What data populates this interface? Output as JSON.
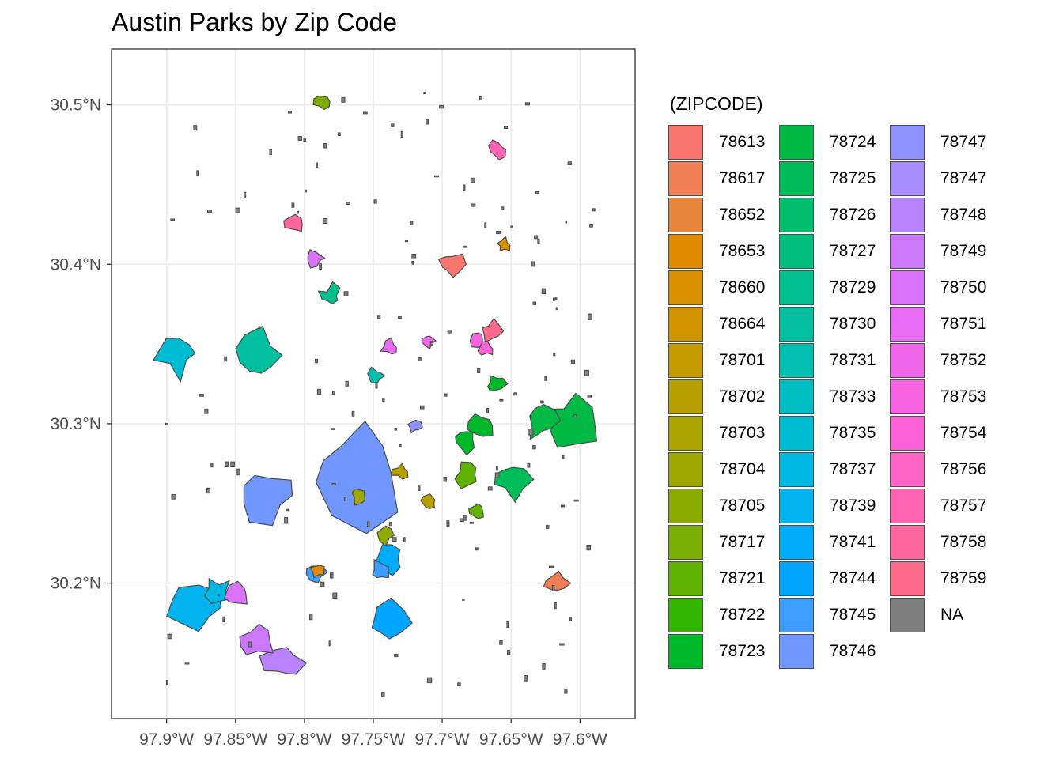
{
  "chart_data": {
    "type": "map",
    "title": "Austin Parks by Zip Code",
    "legend_title": "(ZIPCODE)",
    "legend_position": "right",
    "grid": true,
    "theme": "bw",
    "xlim": [
      -97.94,
      -97.56
    ],
    "ylim": [
      30.115,
      30.535
    ],
    "x_ticks": [
      {
        "value": -97.9,
        "label": "97.9°W"
      },
      {
        "value": -97.85,
        "label": "97.85°W"
      },
      {
        "value": -97.8,
        "label": "97.8°W"
      },
      {
        "value": -97.75,
        "label": "97.75°W"
      },
      {
        "value": -97.7,
        "label": "97.7°W"
      },
      {
        "value": -97.65,
        "label": "97.65°W"
      },
      {
        "value": -97.6,
        "label": "97.6°W"
      }
    ],
    "y_ticks": [
      {
        "value": 30.2,
        "label": "30.2°N"
      },
      {
        "value": 30.3,
        "label": "30.3°N"
      },
      {
        "value": 30.4,
        "label": "30.4°N"
      },
      {
        "value": 30.5,
        "label": "30.5°N"
      }
    ],
    "legend": [
      {
        "label": "78613",
        "color": "#F8766D"
      },
      {
        "label": "78617",
        "color": "#F07F55"
      },
      {
        "label": "78652",
        "color": "#E8853A"
      },
      {
        "label": "78653",
        "color": "#E18A00"
      },
      {
        "label": "78660",
        "color": "#D89000"
      },
      {
        "label": "78664",
        "color": "#CF9400"
      },
      {
        "label": "78701",
        "color": "#C49A00"
      },
      {
        "label": "78702",
        "color": "#B79F00"
      },
      {
        "label": "78703",
        "color": "#AAA300"
      },
      {
        "label": "78704",
        "color": "#9DA700"
      },
      {
        "label": "78705",
        "color": "#8CAB00"
      },
      {
        "label": "78717",
        "color": "#7AAE00"
      },
      {
        "label": "78721",
        "color": "#5EB300"
      },
      {
        "label": "78722",
        "color": "#33B600"
      },
      {
        "label": "78723",
        "color": "#00B82A"
      },
      {
        "label": "78724",
        "color": "#00BA45"
      },
      {
        "label": "78725",
        "color": "#00BC59"
      },
      {
        "label": "78726",
        "color": "#00BD6C"
      },
      {
        "label": "78727",
        "color": "#00BF7D"
      },
      {
        "label": "78729",
        "color": "#00C08E"
      },
      {
        "label": "78730",
        "color": "#00C0A0"
      },
      {
        "label": "78731",
        "color": "#00BFB1"
      },
      {
        "label": "78733",
        "color": "#00BEC3"
      },
      {
        "label": "78735",
        "color": "#00BCD3"
      },
      {
        "label": "78737",
        "color": "#00B8E2"
      },
      {
        "label": "78739",
        "color": "#00B3EF"
      },
      {
        "label": "78741",
        "color": "#00ABFA"
      },
      {
        "label": "78744",
        "color": "#00A5FF"
      },
      {
        "label": "78745",
        "color": "#3E9EFF"
      },
      {
        "label": "78746",
        "color": "#7097FF"
      },
      {
        "label": "78747",
        "color": "#8F91FF"
      },
      {
        "label": "78747",
        "color": "#A68BFF"
      },
      {
        "label": "78748",
        "color": "#BA82FF"
      },
      {
        "label": "78749",
        "color": "#CB78F8"
      },
      {
        "label": "78750",
        "color": "#DB72FB"
      },
      {
        "label": "78751",
        "color": "#E76BF3"
      },
      {
        "label": "78752",
        "color": "#F066EA"
      },
      {
        "label": "78753",
        "color": "#F763E0"
      },
      {
        "label": "78754",
        "color": "#FC61D5"
      },
      {
        "label": "78756",
        "color": "#FF63C6"
      },
      {
        "label": "78757",
        "color": "#FF64B2"
      },
      {
        "label": "78758",
        "color": "#FF669E"
      },
      {
        "label": "78759",
        "color": "#FF6A8B"
      },
      {
        "label": "NA",
        "color": "#7F7F7F"
      }
    ],
    "parks": [
      {
        "zip": "78739",
        "lon": -97.88,
        "lat": 30.185
      },
      {
        "zip": "78735",
        "lon": -97.893,
        "lat": 30.344
      },
      {
        "zip": "78730",
        "lon": -97.834,
        "lat": 30.343
      },
      {
        "zip": "78746",
        "lon": -97.827,
        "lat": 30.255
      },
      {
        "zip": "78746",
        "lon": -97.762,
        "lat": 30.27
      },
      {
        "zip": "78737",
        "lon": -97.863,
        "lat": 30.195
      },
      {
        "zip": "78748",
        "lon": -97.815,
        "lat": 30.15
      },
      {
        "zip": "78749",
        "lon": -97.835,
        "lat": 30.163
      },
      {
        "zip": "78744",
        "lon": -97.74,
        "lat": 30.175
      },
      {
        "zip": "78741",
        "lon": -97.738,
        "lat": 30.215
      },
      {
        "zip": "78724",
        "lon": -97.606,
        "lat": 30.302
      },
      {
        "zip": "78724",
        "lon": -97.628,
        "lat": 30.302
      },
      {
        "zip": "78725",
        "lon": -97.65,
        "lat": 30.265
      },
      {
        "zip": "78617",
        "lon": -97.617,
        "lat": 30.2
      },
      {
        "zip": "78613",
        "lon": -97.694,
        "lat": 30.4
      },
      {
        "zip": "78759",
        "lon": -97.664,
        "lat": 30.358
      },
      {
        "zip": "78750",
        "lon": -97.792,
        "lat": 30.404
      },
      {
        "zip": "78750",
        "lon": -97.85,
        "lat": 30.193
      },
      {
        "zip": "78729",
        "lon": -97.781,
        "lat": 30.38
      },
      {
        "zip": "78731",
        "lon": -97.748,
        "lat": 30.33
      },
      {
        "zip": "78723",
        "lon": -97.684,
        "lat": 30.29
      },
      {
        "zip": "78723",
        "lon": -97.672,
        "lat": 30.299
      },
      {
        "zip": "78723",
        "lon": -97.661,
        "lat": 30.325
      },
      {
        "zip": "78721",
        "lon": -97.681,
        "lat": 30.268
      },
      {
        "zip": "78721",
        "lon": -97.675,
        "lat": 30.245
      },
      {
        "zip": "78702",
        "lon": -97.73,
        "lat": 30.27
      },
      {
        "zip": "78702",
        "lon": -97.71,
        "lat": 30.25
      },
      {
        "zip": "78704",
        "lon": -97.76,
        "lat": 30.255
      },
      {
        "zip": "78705",
        "lon": -97.742,
        "lat": 30.23
      },
      {
        "zip": "78745",
        "lon": -97.792,
        "lat": 30.207
      },
      {
        "zip": "78745",
        "lon": -97.745,
        "lat": 30.207
      },
      {
        "zip": "78747",
        "lon": -97.72,
        "lat": 30.298
      },
      {
        "zip": "78751",
        "lon": -97.738,
        "lat": 30.348
      },
      {
        "zip": "78752",
        "lon": -97.71,
        "lat": 30.352
      },
      {
        "zip": "78753",
        "lon": -97.675,
        "lat": 30.353
      },
      {
        "zip": "78754",
        "lon": -97.668,
        "lat": 30.347
      },
      {
        "zip": "78757",
        "lon": -97.66,
        "lat": 30.472
      },
      {
        "zip": "78758",
        "lon": -97.808,
        "lat": 30.425
      },
      {
        "zip": "78717",
        "lon": -97.787,
        "lat": 30.502
      },
      {
        "zip": "78660",
        "lon": -97.655,
        "lat": 30.412
      },
      {
        "zip": "78653",
        "lon": -97.79,
        "lat": 30.208
      }
    ]
  }
}
